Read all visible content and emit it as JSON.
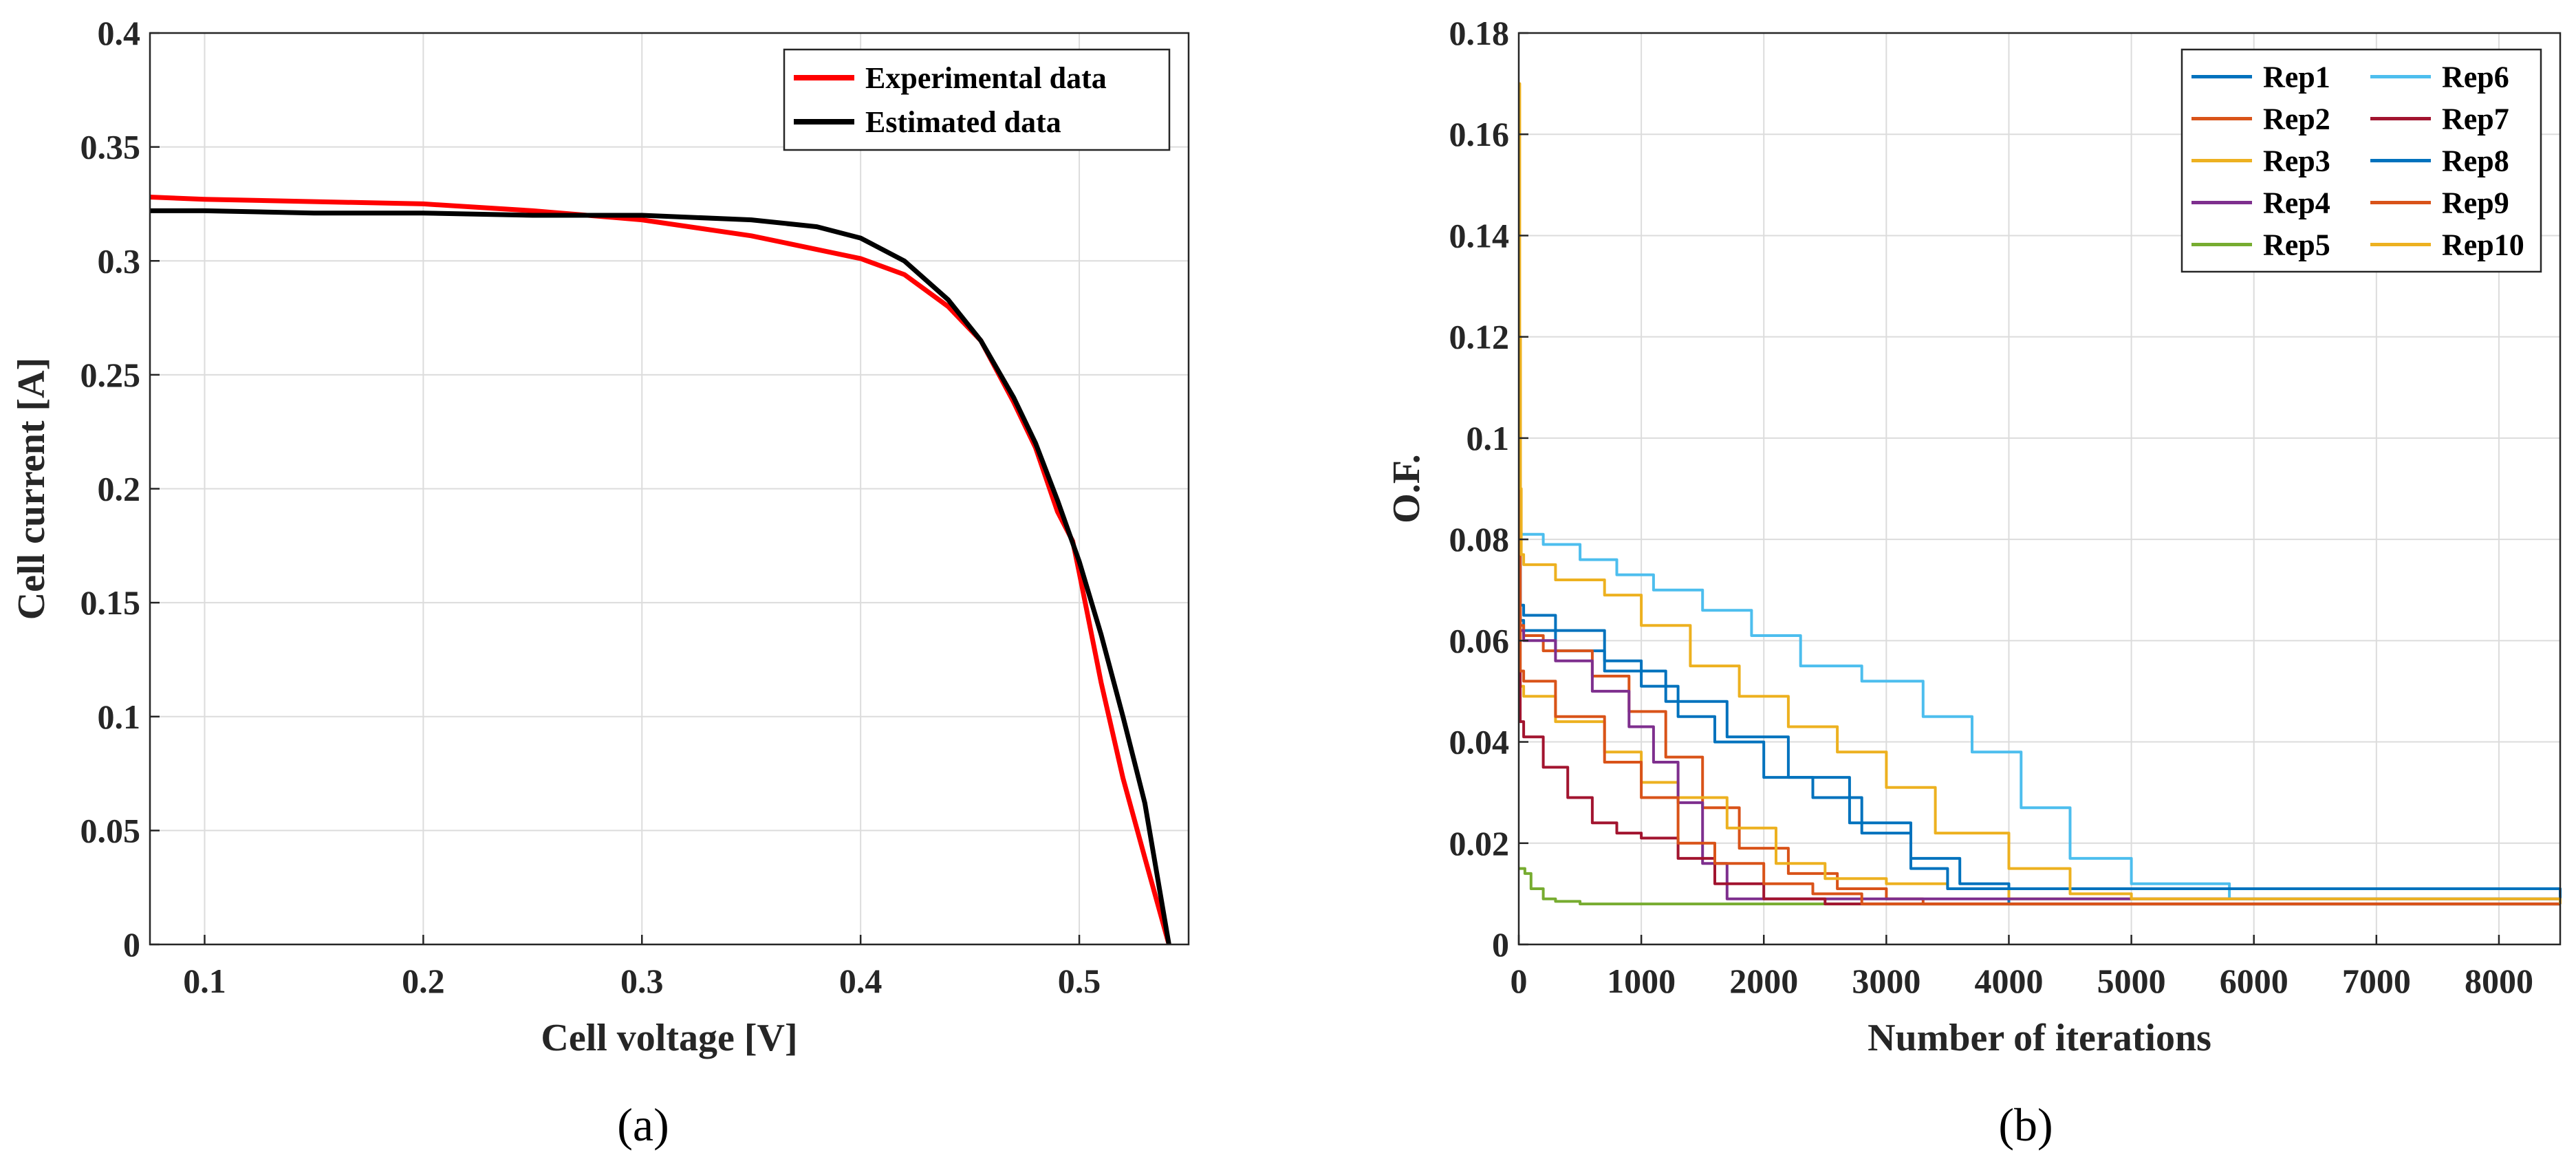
{
  "chart_data": [
    {
      "type": "line",
      "caption": "(a)",
      "xlabel": "Cell voltage [V]",
      "ylabel": "Cell current [A]",
      "xlim": [
        0.075,
        0.55
      ],
      "ylim": [
        0,
        0.4
      ],
      "xticks": [
        0.1,
        0.2,
        0.3,
        0.4,
        0.5
      ],
      "yticks": [
        0,
        0.05,
        0.1,
        0.15,
        0.2,
        0.25,
        0.3,
        0.35,
        0.4
      ],
      "xtick_labels": [
        "0.1",
        "0.2",
        "0.3",
        "0.4",
        "0.5"
      ],
      "ytick_labels": [
        "0",
        "0.05",
        "0.1",
        "0.15",
        "0.2",
        "0.25",
        "0.3",
        "0.35",
        "0.4"
      ],
      "grid": true,
      "legend": "top-right",
      "series": [
        {
          "name": "Experimental data",
          "color": "#ff0000",
          "x": [
            0.075,
            0.1,
            0.15,
            0.2,
            0.25,
            0.3,
            0.35,
            0.4,
            0.42,
            0.44,
            0.455,
            0.47,
            0.48,
            0.49,
            0.497,
            0.5,
            0.51,
            0.52,
            0.53,
            0.541
          ],
          "y": [
            0.328,
            0.327,
            0.326,
            0.325,
            0.322,
            0.318,
            0.311,
            0.301,
            0.294,
            0.28,
            0.265,
            0.238,
            0.218,
            0.19,
            0.177,
            0.163,
            0.115,
            0.073,
            0.038,
            0.0
          ]
        },
        {
          "name": "Estimated data",
          "color": "#000000",
          "x": [
            0.075,
            0.1,
            0.15,
            0.2,
            0.25,
            0.3,
            0.35,
            0.38,
            0.4,
            0.42,
            0.44,
            0.455,
            0.47,
            0.48,
            0.49,
            0.5,
            0.51,
            0.52,
            0.53,
            0.541
          ],
          "y": [
            0.322,
            0.322,
            0.321,
            0.321,
            0.32,
            0.32,
            0.318,
            0.315,
            0.31,
            0.3,
            0.283,
            0.265,
            0.24,
            0.22,
            0.195,
            0.168,
            0.136,
            0.1,
            0.062,
            0.0
          ]
        }
      ]
    },
    {
      "type": "line",
      "caption": "(b)",
      "xlabel": "Number of iterations",
      "ylabel": "O.F.",
      "xlim": [
        0,
        8500
      ],
      "ylim": [
        0,
        0.18
      ],
      "xticks": [
        0,
        1000,
        2000,
        3000,
        4000,
        5000,
        6000,
        7000,
        8000
      ],
      "yticks": [
        0,
        0.02,
        0.04,
        0.06,
        0.08,
        0.1,
        0.12,
        0.14,
        0.16,
        0.18
      ],
      "xtick_labels": [
        "0",
        "1000",
        "2000",
        "3000",
        "4000",
        "5000",
        "6000",
        "7000",
        "8000"
      ],
      "ytick_labels": [
        "0",
        "0.02",
        "0.04",
        "0.06",
        "0.08",
        "0.1",
        "0.12",
        "0.14",
        "0.16",
        "0.18"
      ],
      "grid": true,
      "legend": "top-right",
      "series": [
        {
          "name": "Rep1",
          "color": "#0072bd",
          "x": [
            0,
            12,
            40,
            300,
            700,
            1200,
            1700,
            2200,
            2700,
            3200,
            3600,
            4000,
            8500
          ],
          "y": [
            0.11,
            0.064,
            0.062,
            0.058,
            0.054,
            0.048,
            0.041,
            0.033,
            0.024,
            0.017,
            0.012,
            0.008,
            0.008
          ]
        },
        {
          "name": "Rep2",
          "color": "#d95319",
          "x": [
            0,
            12,
            40,
            200,
            600,
            900,
            1200,
            1500,
            1800,
            2200,
            2600,
            3000,
            3300,
            8500
          ],
          "y": [
            0.105,
            0.063,
            0.061,
            0.058,
            0.053,
            0.046,
            0.037,
            0.027,
            0.019,
            0.014,
            0.011,
            0.009,
            0.008,
            0.008
          ]
        },
        {
          "name": "Rep3",
          "color": "#edb120",
          "x": [
            0,
            12,
            40,
            300,
            700,
            1000,
            1300,
            1700,
            2100,
            2500,
            3000,
            3500,
            4000,
            8500
          ],
          "y": [
            0.1,
            0.051,
            0.049,
            0.044,
            0.038,
            0.032,
            0.029,
            0.023,
            0.016,
            0.013,
            0.012,
            0.011,
            0.009,
            0.008
          ]
        },
        {
          "name": "Rep4",
          "color": "#7e2f8e",
          "x": [
            0,
            12,
            40,
            300,
            600,
            900,
            1100,
            1300,
            1500,
            1700,
            8500
          ],
          "y": [
            0.09,
            0.062,
            0.06,
            0.056,
            0.05,
            0.043,
            0.036,
            0.028,
            0.016,
            0.009,
            0.008
          ]
        },
        {
          "name": "Rep5",
          "color": "#77ac30",
          "x": [
            0,
            50,
            100,
            200,
            300,
            500,
            8500
          ],
          "y": [
            0.015,
            0.014,
            0.011,
            0.009,
            0.0085,
            0.008,
            0.008
          ]
        },
        {
          "name": "Rep6",
          "color": "#4dbeee",
          "x": [
            0,
            12,
            40,
            200,
            500,
            800,
            1100,
            1500,
            1900,
            2300,
            2800,
            3300,
            3700,
            4100,
            4500,
            5000,
            5800,
            8500
          ],
          "y": [
            0.085,
            0.081,
            0.081,
            0.079,
            0.076,
            0.073,
            0.07,
            0.066,
            0.061,
            0.055,
            0.052,
            0.045,
            0.038,
            0.027,
            0.017,
            0.012,
            0.009,
            0.008
          ]
        },
        {
          "name": "Rep7",
          "color": "#a2142f",
          "x": [
            0,
            12,
            40,
            200,
            400,
            600,
            800,
            1000,
            1300,
            1600,
            2000,
            2500,
            8500
          ],
          "y": [
            0.08,
            0.044,
            0.041,
            0.035,
            0.029,
            0.024,
            0.022,
            0.021,
            0.017,
            0.012,
            0.009,
            0.008,
            0.008
          ]
        },
        {
          "name": "Rep8",
          "color": "#0072bd",
          "x": [
            0,
            12,
            40,
            300,
            700,
            1000,
            1300,
            1600,
            2000,
            2400,
            2800,
            3200,
            3500,
            8500
          ],
          "y": [
            0.095,
            0.067,
            0.065,
            0.062,
            0.056,
            0.051,
            0.045,
            0.04,
            0.033,
            0.029,
            0.022,
            0.015,
            0.011,
            0.008
          ]
        },
        {
          "name": "Rep9",
          "color": "#d95319",
          "x": [
            0,
            12,
            40,
            300,
            700,
            1000,
            1300,
            1600,
            2000,
            2400,
            2800,
            8500
          ],
          "y": [
            0.09,
            0.054,
            0.052,
            0.045,
            0.036,
            0.029,
            0.02,
            0.016,
            0.012,
            0.01,
            0.008,
            0.008
          ]
        },
        {
          "name": "Rep10",
          "color": "#edb120",
          "x": [
            0,
            8,
            14,
            20,
            40,
            300,
            700,
            1000,
            1400,
            1800,
            2200,
            2600,
            3000,
            3400,
            4000,
            4500,
            5000,
            8500
          ],
          "y": [
            0.17,
            0.12,
            0.09,
            0.077,
            0.075,
            0.072,
            0.069,
            0.063,
            0.055,
            0.049,
            0.043,
            0.038,
            0.031,
            0.022,
            0.015,
            0.01,
            0.009,
            0.008
          ]
        }
      ]
    }
  ]
}
